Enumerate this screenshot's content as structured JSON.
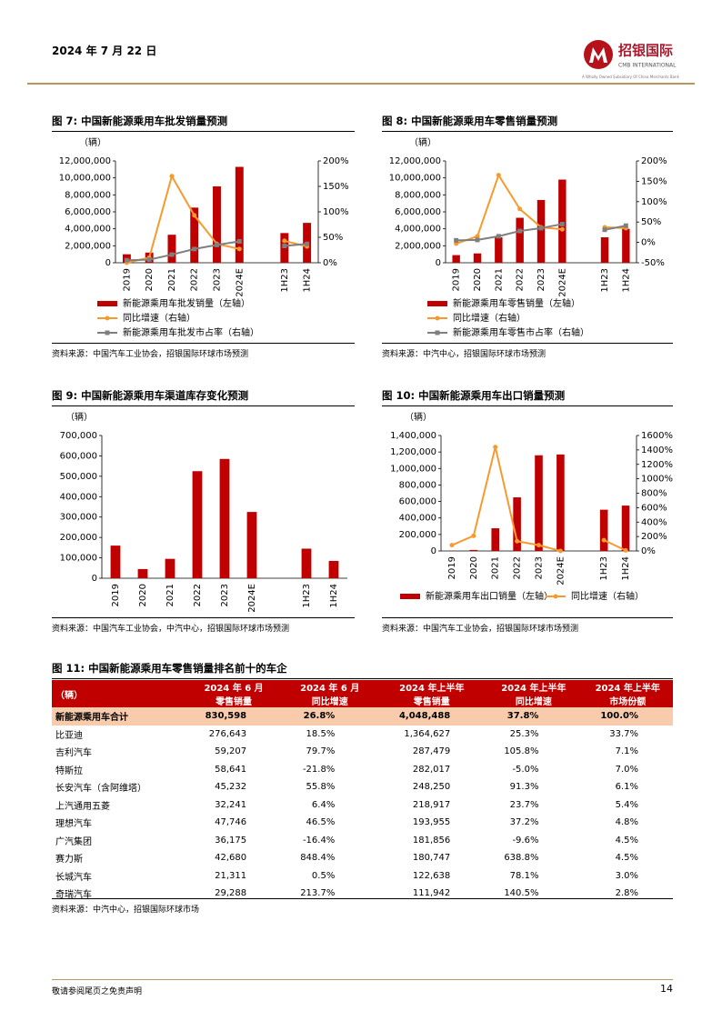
{
  "header": {
    "date": "2024 年 7 月 22 日",
    "logo_cn": "招银国际",
    "logo_en": "CMB INTERNATIONAL",
    "logo_sub": "A Wholly Owned Subsidiary Of China Merchants Bank"
  },
  "figures": [
    {
      "title": "图 7: 中国新能源乘用车批发销量预测",
      "source": "资料来源：中国汽车工业协会，招银国际环球市场预测",
      "chart_data": {
        "type": "bar",
        "y_label": "（辆）",
        "categories": [
          "2019",
          "2020",
          "2021",
          "2022",
          "2023",
          "2024E",
          null,
          "1H23",
          "1H24"
        ],
        "ylim": [
          0,
          12000000
        ],
        "yticks": [
          0,
          {
            "value": 2000000,
            "label": "2,000,000"
          },
          {
            "value": 4000000,
            "label": "4,000,000"
          },
          {
            "value": 6000000,
            "label": "6,000,000"
          },
          {
            "value": 8000000,
            "label": "8,000,000"
          },
          {
            "value": 10000000,
            "label": "10,000,000"
          },
          {
            "value": 12000000,
            "label": "12,000,000"
          }
        ],
        "y2lim": [
          0,
          200
        ],
        "y2ticks": [
          {
            "value": 0,
            "label": "0%"
          },
          {
            "value": 50,
            "label": "50%"
          },
          {
            "value": 100,
            "label": "100%"
          },
          {
            "value": 150,
            "label": "150%"
          },
          {
            "value": 200,
            "label": "200%"
          }
        ],
        "series": [
          {
            "name": "新能源乘用车批发销量（左轴）",
            "type": "bar",
            "color": "#c00000",
            "values": [
              1000000,
              1200000,
              3300000,
              6500000,
              9000000,
              11300000,
              null,
              3500000,
              4700000
            ]
          },
          {
            "name": "同比增速（右轴）",
            "type": "line",
            "marker": "circle",
            "axis": "y2",
            "color": "#f79a2e",
            "values": [
              0,
              10,
              170,
              93,
              37,
              27,
              null,
              43,
              32
            ]
          },
          {
            "name": "新能源乘用车批发市占率（右轴）",
            "type": "line",
            "marker": "square",
            "axis": "y2",
            "color": "#7f7f7f",
            "values": [
              5,
              6,
              16,
              27,
              35,
              42,
              null,
              33,
              37
            ]
          }
        ]
      }
    },
    {
      "title": "图 8: 中国新能源乘用车零售销量预测",
      "source": "资料来源：中汽中心，招银国际环球市场预测",
      "chart_data": {
        "type": "bar",
        "y_label": "（辆）",
        "categories": [
          "2019",
          "2020",
          "2021",
          "2022",
          "2023",
          "2024E",
          null,
          "1H23",
          "1H24"
        ],
        "ylim": [
          0,
          12000000
        ],
        "yticks": [
          0,
          {
            "value": 2000000,
            "label": "2,000,000"
          },
          {
            "value": 4000000,
            "label": "4,000,000"
          },
          {
            "value": 6000000,
            "label": "6,000,000"
          },
          {
            "value": 8000000,
            "label": "8,000,000"
          },
          {
            "value": 10000000,
            "label": "10,000,000"
          },
          {
            "value": 12000000,
            "label": "12,000,000"
          }
        ],
        "y2lim": [
          -50,
          200
        ],
        "y2ticks": [
          {
            "value": -50,
            "label": "-50%"
          },
          {
            "value": 0,
            "label": "0%"
          },
          {
            "value": 50,
            "label": "50%"
          },
          {
            "value": 100,
            "label": "100%"
          },
          {
            "value": 150,
            "label": "150%"
          },
          {
            "value": 200,
            "label": "200%"
          }
        ],
        "series": [
          {
            "name": "新能源乘用车零售销量（左轴）",
            "type": "bar",
            "color": "#c00000",
            "values": [
              900000,
              1100000,
              3000000,
              5300000,
              7400000,
              9800000,
              null,
              3000000,
              4000000
            ]
          },
          {
            "name": "同比增速（右轴）",
            "type": "line",
            "marker": "circle",
            "axis": "y2",
            "color": "#f79a2e",
            "values": [
              -3,
              15,
              165,
              82,
              37,
              32,
              null,
              37,
              35
            ]
          },
          {
            "name": "新能源乘用车零售市占率（右轴）",
            "type": "line",
            "marker": "square",
            "axis": "y2",
            "color": "#7f7f7f",
            "values": [
              5,
              6,
              15,
              28,
              35,
              45,
              null,
              31,
              41
            ]
          }
        ]
      }
    },
    {
      "title": "图 9: 中国新能源乘用车渠道库存变化预测",
      "source": "资料来源：中国汽车工业协会，中汽中心，招银国际环球市场预测",
      "chart_data": {
        "type": "bar",
        "y_label": "（辆）",
        "categories": [
          "2019",
          "2020",
          "2021",
          "2022",
          "2023",
          "2024E",
          null,
          "1H23",
          "1H24"
        ],
        "ylim": [
          0,
          700000
        ],
        "yticks": [
          0,
          {
            "value": 100000,
            "label": "100,000"
          },
          {
            "value": 200000,
            "label": "200,000"
          },
          {
            "value": 300000,
            "label": "300,000"
          },
          {
            "value": 400000,
            "label": "400,000"
          },
          {
            "value": 500000,
            "label": "500,000"
          },
          {
            "value": 600000,
            "label": "600,000"
          },
          {
            "value": 700000,
            "label": "700,000"
          }
        ],
        "color": "#c00000",
        "values": [
          160000,
          45000,
          95000,
          525000,
          585000,
          325000,
          null,
          145000,
          85000
        ]
      }
    },
    {
      "title": "图 10: 中国新能源乘用车出口销量预测",
      "source": "资料来源：中国汽车工业协会，招银国际环球市场预测",
      "chart_data": {
        "type": "bar",
        "y_label": "（辆）",
        "categories": [
          "2019",
          "2020",
          "2021",
          "2022",
          "2023",
          "2024E",
          null,
          "1H23",
          "1H24"
        ],
        "ylim": [
          0,
          1400000
        ],
        "yticks": [
          0,
          {
            "value": 200000,
            "label": "200,000"
          },
          {
            "value": 400000,
            "label": "400,000"
          },
          {
            "value": 600000,
            "label": "600,000"
          },
          {
            "value": 800000,
            "label": "800,000"
          },
          {
            "value": 1000000,
            "label": "1,000,000"
          },
          {
            "value": 1200000,
            "label": "1,200,000"
          },
          {
            "value": 1400000,
            "label": "1,400,000"
          }
        ],
        "y2lim": [
          0,
          1600
        ],
        "y2ticks": [
          {
            "value": 0,
            "label": "0%"
          },
          {
            "value": 200,
            "label": "200%"
          },
          {
            "value": 400,
            "label": "400%"
          },
          {
            "value": 600,
            "label": "600%"
          },
          {
            "value": 800,
            "label": "800%"
          },
          {
            "value": 1000,
            "label": "1000%"
          },
          {
            "value": 1200,
            "label": "1200%"
          },
          {
            "value": 1400,
            "label": "1400%"
          },
          {
            "value": 1600,
            "label": "1600%"
          }
        ],
        "series": [
          {
            "name": "新能源乘用车出口销量（左轴）",
            "type": "bar",
            "color": "#c00000",
            "values": [
              2000,
              12000,
              275000,
              650000,
              1160000,
              1170000,
              null,
              500000,
              550000
            ]
          },
          {
            "name": "同比增速（右轴）",
            "type": "line",
            "marker": "circle",
            "axis": "y2",
            "color": "#f79a2e",
            "values": [
              80,
              210,
              1440,
              135,
              80,
              0,
              null,
              150,
              8
            ]
          }
        ]
      }
    }
  ],
  "table": {
    "title": "图 11: 中国新能源乘用车零售销量排名前十的车企",
    "header": [
      [
        "（辆）"
      ],
      [
        "2024 年 6 月",
        "零售销量"
      ],
      [
        "2024 年 6 月",
        "同比增速"
      ],
      [
        "2024 年上半年",
        "零售销量"
      ],
      [
        "2024 年上半年",
        "同比增速"
      ],
      [
        "2024 年上半年",
        "市场份额"
      ]
    ],
    "rows": [
      [
        "新能源乘用车合计",
        "830,598",
        "26.8%",
        "4,048,488",
        "37.8%",
        "100.0%"
      ],
      [
        "比亚迪",
        "276,643",
        "18.5%",
        "1,364,627",
        "25.3%",
        "33.7%"
      ],
      [
        "吉利汽车",
        "59,207",
        "79.7%",
        "287,479",
        "105.8%",
        "7.1%"
      ],
      [
        "特斯拉",
        "58,641",
        "-21.8%",
        "282,017",
        "-5.0%",
        "7.0%"
      ],
      [
        "长安汽车（含阿维塔）",
        "45,232",
        "55.8%",
        "248,250",
        "91.3%",
        "6.1%"
      ],
      [
        "上汽通用五菱",
        "32,241",
        "6.4%",
        "218,917",
        "23.7%",
        "5.4%"
      ],
      [
        "理想汽车",
        "47,746",
        "46.5%",
        "193,955",
        "37.2%",
        "4.8%"
      ],
      [
        "广汽集团",
        "36,175",
        "-16.4%",
        "181,856",
        "-9.6%",
        "4.5%"
      ],
      [
        "赛力斯",
        "42,680",
        "848.4%",
        "180,747",
        "638.8%",
        "4.5%"
      ],
      [
        "长城汽车",
        "21,311",
        "0.5%",
        "122,638",
        "78.1%",
        "3.0%"
      ],
      [
        "奇瑞汽车",
        "29,288",
        "213.7%",
        "111,942",
        "140.5%",
        "2.8%"
      ]
    ],
    "source": "资料来源：中汽中心，招银国际环球市场"
  },
  "footer": {
    "disclaimer": "敬请参阅尾页之免责声明",
    "page": "14"
  }
}
